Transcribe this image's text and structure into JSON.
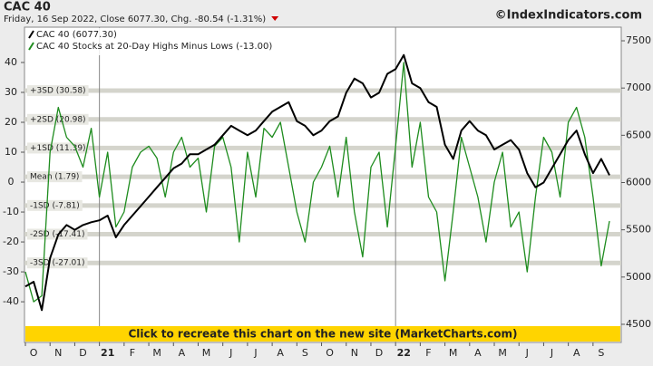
{
  "chart_data": {
    "type": "line",
    "title": "CAC 40",
    "subtitle": "Friday, 16 Sep 2022, Close 6077.30, Chg. -80.54 (-1.31%)",
    "source": "©IndexIndicators.com",
    "banner": "Click to recreate this chart on the new site (MarketCharts.com)",
    "categories": [
      null,
      "O",
      null,
      null,
      "N",
      null,
      null,
      "D",
      null,
      null,
      "21",
      null,
      null,
      "F",
      null,
      null,
      "M",
      null,
      null,
      "A",
      null,
      null,
      "M",
      null,
      null,
      "J",
      null,
      null,
      "J",
      null,
      null,
      "A",
      null,
      null,
      "S",
      null,
      null,
      "O",
      null,
      null,
      "N",
      null,
      null,
      "D",
      null,
      null,
      "22",
      null,
      null,
      "F",
      null,
      null,
      "M",
      null,
      null,
      "A",
      null,
      null,
      "M",
      null,
      null,
      "J",
      null,
      null,
      "J",
      null,
      null,
      "A",
      null,
      null,
      "S",
      null
    ],
    "series": [
      {
        "name": "CAC 40 (6077.30)",
        "color": "#000000",
        "axis": "y2",
        "values": [
          4900,
          4950,
          4650,
          5200,
          5450,
          5550,
          5500,
          5550,
          5580,
          5600,
          5650,
          5420,
          5550,
          5650,
          5750,
          5850,
          5950,
          6050,
          6150,
          6200,
          6300,
          6300,
          6350,
          6400,
          6500,
          6600,
          6550,
          6500,
          6550,
          6650,
          6750,
          6800,
          6850,
          6650,
          6600,
          6500,
          6550,
          6650,
          6700,
          6950,
          7100,
          7050,
          6900,
          6950,
          7150,
          7200,
          7350,
          7050,
          7000,
          6850,
          6800,
          6400,
          6250,
          6550,
          6650,
          6550,
          6500,
          6350,
          6400,
          6450,
          6350,
          6100,
          5950,
          6000,
          6150,
          6300,
          6450,
          6550,
          6300,
          6100,
          6250,
          6077.3
        ]
      },
      {
        "name": "CAC 40 Stocks at 20-Day Highs Minus Lows (-13.00)",
        "color": "#1e8c1e",
        "values": [
          -30,
          -40,
          -38,
          10,
          25,
          15,
          12,
          5,
          18,
          -5,
          10,
          -15,
          -10,
          5,
          10,
          12,
          8,
          -5,
          10,
          15,
          5,
          8,
          -10,
          12,
          15,
          5,
          -20,
          10,
          -5,
          18,
          15,
          20,
          5,
          -10,
          -20,
          0,
          5,
          12,
          -5,
          15,
          -10,
          -25,
          5,
          10,
          -15,
          12,
          40,
          5,
          20,
          -5,
          -10,
          -33,
          -10,
          15,
          5,
          -5,
          -20,
          0,
          10,
          -15,
          -10,
          -30,
          -5,
          15,
          10,
          -5,
          20,
          25,
          15,
          -5,
          -28,
          -13
        ]
      }
    ],
    "bands": [
      {
        "label": "+3SD (30.58)",
        "value": 30.58
      },
      {
        "label": "+2SD (20.98)",
        "value": 20.98
      },
      {
        "label": "+1SD (11.39)",
        "value": 11.39
      },
      {
        "label": "Mean (1.79)",
        "value": 1.79
      },
      {
        "label": "-1SD (-7.81)",
        "value": -7.81
      },
      {
        "label": "-2SD (-17.41)",
        "value": -17.41
      },
      {
        "label": "-3SD (-27.01)",
        "value": -27.01
      }
    ],
    "ylim": [
      -53.6,
      51.8
    ],
    "yticks": [
      40,
      30,
      20,
      10,
      0,
      -10,
      -20,
      -30,
      -40
    ],
    "y2lim": [
      4308,
      7644
    ],
    "y2ticks": [
      4500,
      5000,
      5500,
      6000,
      6500,
      7000,
      7500
    ],
    "legend": "upper left"
  }
}
